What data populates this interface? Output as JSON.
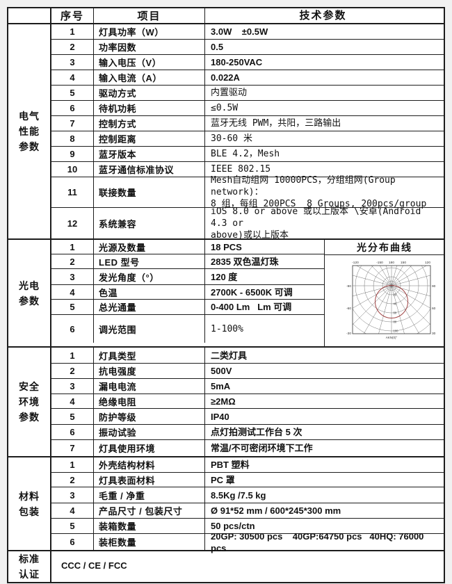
{
  "page": {
    "background": "#f1f1f1",
    "table_background": "#ffffff",
    "border_color": "#1c1c1c",
    "curve_line_color": "#a04545"
  },
  "header": {
    "no": "序号",
    "item": "项目",
    "param": "技术参数"
  },
  "sections": [
    {
      "category": "电气性能参数",
      "category_lines": [
        "电气",
        "性能",
        "参数"
      ],
      "rows": [
        {
          "no": "1",
          "item": "灯具功率（W）",
          "value": "3.0W    ±0.5W",
          "vstyle": "bold"
        },
        {
          "no": "2",
          "item": "功率因数",
          "value": "0.5",
          "vstyle": "bold"
        },
        {
          "no": "3",
          "item": "输入电压（V）",
          "value": "180-250VAC",
          "vstyle": "bold"
        },
        {
          "no": "4",
          "item": "输入电流（A）",
          "value": "0.022A",
          "vstyle": "bold"
        },
        {
          "no": "5",
          "item": "驱动方式",
          "value": "内置驱动",
          "vstyle": "thin"
        },
        {
          "no": "6",
          "item": "待机功耗",
          "value": "≤0.5W",
          "vstyle": "thin"
        },
        {
          "no": "7",
          "item": "控制方式",
          "value": "蓝牙无线 PWM，共阳，三路输出",
          "vstyle": "thin"
        },
        {
          "no": "8",
          "item": "控制距离",
          "value": "30-60 米",
          "vstyle": "thin"
        },
        {
          "no": "9",
          "item": "蓝牙版本",
          "value": "BLE 4.2，Mesh",
          "vstyle": "thin"
        },
        {
          "no": "10",
          "item": "蓝牙通信标准协议",
          "value": "IEEE 802.15",
          "vstyle": "thin"
        },
        {
          "no": "11",
          "item": "联接数量",
          "value": "Mesh自动组网 10000PCS，分组组网(Group network)：\n8 组，每组 200PCS  8 Groups, 200pcs/group",
          "vstyle": "thin"
        },
        {
          "no": "12",
          "item": "系统兼容",
          "value": "iOS 8.0 or above 或以上版本 \\安卓(Android 4.3 or\nabove)或以上版本",
          "vstyle": "thin"
        }
      ]
    },
    {
      "category": "光电参数",
      "category_lines": [
        "光电",
        "参数"
      ],
      "rows": [
        {
          "no": "1",
          "item": "光源及数量",
          "value": "18 PCS",
          "vstyle": "bold"
        },
        {
          "no": "2",
          "item": "LED 型号",
          "value": "2835 双色温灯珠",
          "vstyle": "bold"
        },
        {
          "no": "3",
          "item": "发光角度（°）",
          "value": "120 度",
          "vstyle": "bold"
        },
        {
          "no": "4",
          "item": "色温",
          "value": "2700K - 6500K 可调",
          "vstyle": "bold"
        },
        {
          "no": "5",
          "item": "总光通量",
          "value": "0-400 Lm   Lm 可调",
          "vstyle": "bold"
        },
        {
          "no": "6",
          "item": "调光范围",
          "value": "1-100%",
          "vstyle": "thin"
        }
      ],
      "curve": {
        "title": "光分布曲线",
        "top_labels": [
          "-120",
          "-150",
          "180",
          "150",
          "120"
        ],
        "left_labels": [
          "-90",
          "-60",
          "-30"
        ],
        "right_labels": [
          "90",
          "60",
          "30"
        ],
        "axis_ticks": [
          "20",
          "40",
          "60",
          "80",
          "100"
        ],
        "footnote": "AKN(0)°"
      }
    },
    {
      "category": "安全环境参数",
      "category_lines": [
        "安全",
        "环境",
        "参数"
      ],
      "rows": [
        {
          "no": "1",
          "item": "灯具类型",
          "value": "二类灯具",
          "vstyle": "bold"
        },
        {
          "no": "2",
          "item": "抗电强度",
          "value": "500V",
          "vstyle": "bold"
        },
        {
          "no": "3",
          "item": "漏电电流",
          "value": "5mA",
          "vstyle": "bold"
        },
        {
          "no": "4",
          "item": "绝缘电阻",
          "value": "≥2MΩ",
          "vstyle": "bold"
        },
        {
          "no": "5",
          "item": "防护等级",
          "value": "IP40",
          "vstyle": "bold"
        },
        {
          "no": "6",
          "item": "振动试验",
          "value": "点灯拍测试工作台 5 次",
          "vstyle": "bold"
        },
        {
          "no": "7",
          "item": "灯具使用环境",
          "value": "常温/不可密闭环境下工作",
          "vstyle": "bold"
        }
      ]
    },
    {
      "category": "材料包装",
      "category_lines": [
        "材料",
        "包装"
      ],
      "rows": [
        {
          "no": "1",
          "item": "外壳结构材料",
          "value": "PBT 塑料",
          "vstyle": "bold"
        },
        {
          "no": "2",
          "item": "灯具表面材料",
          "value": "PC 罩",
          "vstyle": "bold"
        },
        {
          "no": "3",
          "item": "毛重 / 净重",
          "value": "8.5Kg /7.5 kg",
          "vstyle": "bold"
        },
        {
          "no": "4",
          "item": "产品尺寸 / 包装尺寸",
          "value": "Ø 91*52 mm / 600*245*300 mm",
          "vstyle": "bold"
        },
        {
          "no": "5",
          "item": "装箱数量",
          "value": "50 pcs/ctn",
          "vstyle": "bold"
        },
        {
          "no": "6",
          "item": "装柜数量",
          "value": "20GP: 30500 pcs    40GP:64750 pcs   40HQ: 76000 pcs",
          "vstyle": "bold"
        }
      ]
    },
    {
      "category": "标准认证",
      "category_lines": [
        "标准",
        "认证"
      ],
      "single_value": "CCC / CE / FCC"
    }
  ]
}
